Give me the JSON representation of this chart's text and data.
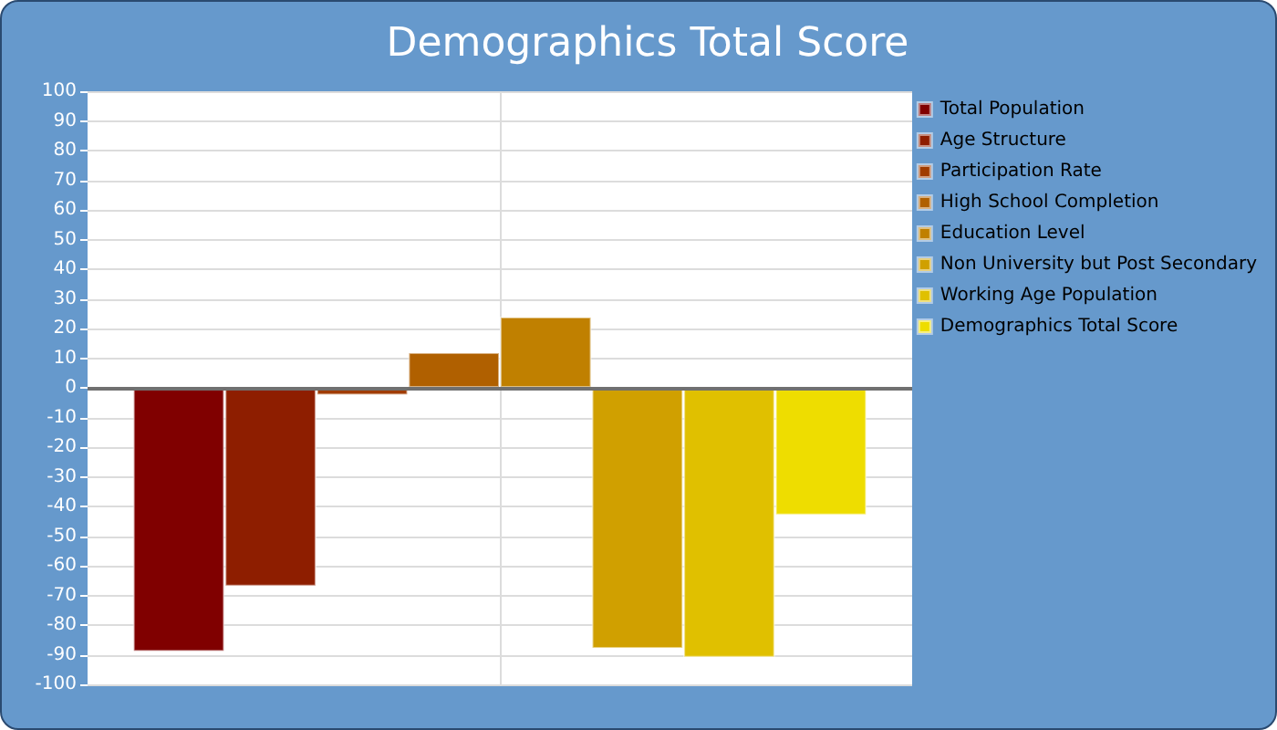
{
  "chart_data": {
    "type": "bar",
    "title": "Demographics Total Score",
    "categories": [
      null
    ],
    "series": [
      {
        "name": "Total Population",
        "color": "#800000",
        "values": [
          -89
        ]
      },
      {
        "name": "Age Structure",
        "color": "#8e1e00",
        "values": [
          -67
        ]
      },
      {
        "name": "Participation Rate",
        "color": "#a03c00",
        "values": [
          -2.5
        ]
      },
      {
        "name": "High School Completion",
        "color": "#b06000",
        "values": [
          12
        ]
      },
      {
        "name": "Education Level",
        "color": "#c08000",
        "values": [
          24
        ]
      },
      {
        "name": "Non University but Post Secondary",
        "color": "#d0a000",
        "values": [
          -88
        ]
      },
      {
        "name": "Working Age Population",
        "color": "#e0c000",
        "values": [
          -91
        ]
      },
      {
        "name": "Demographics Total Score",
        "color": "#eedd00",
        "values": [
          -43
        ]
      }
    ],
    "ylim": [
      -100,
      100
    ],
    "yticks": [
      -100,
      -90,
      -80,
      -70,
      -60,
      -50,
      -40,
      -30,
      -20,
      -10,
      0,
      10,
      20,
      30,
      40,
      50,
      60,
      70,
      80,
      90,
      100
    ],
    "grid": true,
    "legend": "right"
  }
}
